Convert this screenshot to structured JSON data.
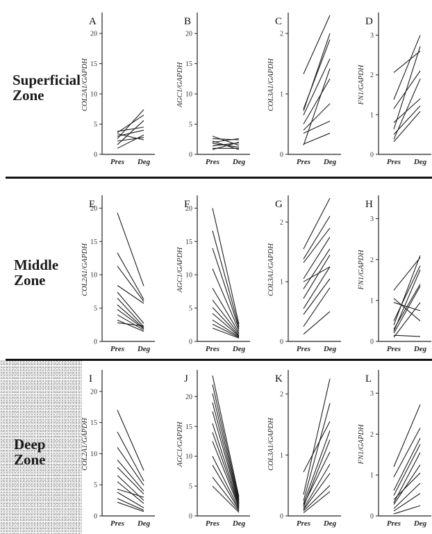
{
  "zones": [
    {
      "id": "superficial",
      "lines": [
        "Superficial",
        "Zone"
      ]
    },
    {
      "id": "middle",
      "lines": [
        "Middle",
        "Zone"
      ]
    },
    {
      "id": "deep",
      "lines": [
        "Deep",
        "Zone"
      ]
    }
  ],
  "chart_data": [
    {
      "type": "line",
      "panel": "A",
      "ylabel": "COL2A1/GAPDH",
      "categories": [
        "Pres",
        "Deg"
      ],
      "ylim": [
        0,
        23
      ],
      "yticks": [
        0,
        5,
        10,
        15,
        20
      ],
      "series": [
        {
          "values": [
            3.8,
            4.5
          ]
        },
        {
          "values": [
            3.6,
            6.5
          ]
        },
        {
          "values": [
            3.4,
            2.4
          ]
        },
        {
          "values": [
            3.0,
            4.0
          ]
        },
        {
          "values": [
            2.6,
            7.4
          ]
        },
        {
          "values": [
            2.2,
            2.8
          ]
        },
        {
          "values": [
            1.6,
            5.6
          ]
        },
        {
          "values": [
            1.0,
            3.2
          ]
        }
      ]
    },
    {
      "type": "line",
      "panel": "B",
      "ylabel": "AGC1/GAPDH",
      "categories": [
        "Pres",
        "Deg"
      ],
      "ylim": [
        0,
        23
      ],
      "yticks": [
        0,
        5,
        10,
        15,
        20
      ],
      "series": [
        {
          "values": [
            3.0,
            1.5
          ]
        },
        {
          "values": [
            2.6,
            2.4
          ]
        },
        {
          "values": [
            2.2,
            0.8
          ]
        },
        {
          "values": [
            2.0,
            2.6
          ]
        },
        {
          "values": [
            1.8,
            1.2
          ]
        },
        {
          "values": [
            1.4,
            1.9
          ]
        },
        {
          "values": [
            1.0,
            1.0
          ]
        },
        {
          "values": [
            0.8,
            2.0
          ]
        }
      ]
    },
    {
      "type": "line",
      "panel": "C",
      "ylabel": "COL3A1/GAPDH",
      "categories": [
        "Pres",
        "Deg"
      ],
      "ylim": [
        0,
        2.3
      ],
      "yticks": [
        0,
        1,
        2
      ],
      "series": [
        {
          "values": [
            1.33,
            2.3
          ]
        },
        {
          "values": [
            0.72,
            2.0
          ]
        },
        {
          "values": [
            0.75,
            1.9
          ]
        },
        {
          "values": [
            0.65,
            1.58
          ]
        },
        {
          "values": [
            0.5,
            1.25
          ]
        },
        {
          "values": [
            0.4,
            0.84
          ]
        },
        {
          "values": [
            0.35,
            0.55
          ]
        },
        {
          "values": [
            0.17,
            0.35
          ]
        },
        {
          "values": [
            0.15,
            1.42
          ]
        }
      ]
    },
    {
      "type": "line",
      "panel": "D",
      "ylabel": "FN1/GAPDH",
      "categories": [
        "Pres",
        "Deg"
      ],
      "ylim": [
        0,
        3.5
      ],
      "yticks": [
        0,
        1,
        2,
        3
      ],
      "series": [
        {
          "values": [
            2.06,
            2.6
          ]
        },
        {
          "values": [
            1.38,
            3.0
          ]
        },
        {
          "values": [
            1.15,
            2.1
          ]
        },
        {
          "values": [
            0.8,
            1.4
          ]
        },
        {
          "values": [
            0.63,
            2.72
          ]
        },
        {
          "values": [
            0.5,
            1.22
          ]
        },
        {
          "values": [
            0.38,
            1.9
          ]
        },
        {
          "values": [
            0.32,
            1.08
          ]
        }
      ]
    },
    {
      "type": "line",
      "panel": "E",
      "ylabel": "COL2A1/GAPDH",
      "categories": [
        "Pres",
        "Deg"
      ],
      "ylim": [
        0,
        21.5
      ],
      "yticks": [
        0,
        5,
        10,
        15,
        20
      ],
      "series": [
        {
          "values": [
            19.3,
            8.3
          ]
        },
        {
          "values": [
            13.3,
            6.3
          ]
        },
        {
          "values": [
            11.3,
            6.0
          ]
        },
        {
          "values": [
            8.4,
            5.7
          ]
        },
        {
          "values": [
            7.4,
            2.7
          ]
        },
        {
          "values": [
            6.5,
            2.2
          ]
        },
        {
          "values": [
            5.5,
            2.0
          ]
        },
        {
          "values": [
            4.8,
            1.9
          ]
        },
        {
          "values": [
            4.0,
            1.7
          ]
        },
        {
          "values": [
            3.2,
            1.5
          ]
        },
        {
          "values": [
            2.8,
            2.3
          ]
        }
      ]
    },
    {
      "type": "line",
      "panel": "F",
      "ylabel": "AGC1/GAPDH",
      "categories": [
        "Pres",
        "Deg"
      ],
      "ylim": [
        0,
        21.5
      ],
      "yticks": [
        0,
        5,
        10,
        15,
        20
      ],
      "series": [
        {
          "values": [
            20.0,
            2.6
          ]
        },
        {
          "values": [
            16.6,
            2.2
          ]
        },
        {
          "values": [
            14.0,
            1.9
          ]
        },
        {
          "values": [
            10.9,
            1.6
          ]
        },
        {
          "values": [
            8.0,
            1.3
          ]
        },
        {
          "values": [
            6.2,
            1.1
          ]
        },
        {
          "values": [
            5.1,
            0.9
          ]
        },
        {
          "values": [
            4.2,
            0.8
          ]
        },
        {
          "values": [
            3.2,
            0.7
          ]
        },
        {
          "values": [
            2.6,
            0.6
          ]
        },
        {
          "values": [
            2.0,
            0.5
          ]
        }
      ]
    },
    {
      "type": "line",
      "panel": "G",
      "ylabel": "COL3A1/GAPDH",
      "categories": [
        "Pres",
        "Deg"
      ],
      "ylim": [
        0,
        2.4
      ],
      "yticks": [
        0,
        1,
        2
      ],
      "series": [
        {
          "values": [
            1.55,
            2.4
          ]
        },
        {
          "values": [
            1.38,
            2.1
          ]
        },
        {
          "values": [
            1.32,
            1.9
          ]
        },
        {
          "values": [
            1.05,
            1.75
          ]
        },
        {
          "values": [
            1.0,
            1.25
          ]
        },
        {
          "values": [
            0.88,
            1.55
          ]
        },
        {
          "values": [
            0.72,
            1.45
          ]
        },
        {
          "values": [
            0.55,
            1.25
          ]
        },
        {
          "values": [
            0.45,
            1.05
          ]
        },
        {
          "values": [
            0.25,
            0.9
          ]
        },
        {
          "values": [
            0.12,
            0.5
          ]
        }
      ]
    },
    {
      "type": "line",
      "panel": "H",
      "ylabel": "FN1/GAPDH",
      "categories": [
        "Pres",
        "Deg"
      ],
      "ylim": [
        0,
        3.5
      ],
      "yticks": [
        0,
        1,
        2,
        3
      ],
      "series": [
        {
          "values": [
            1.25,
            2.05
          ]
        },
        {
          "values": [
            1.05,
            0.5
          ]
        },
        {
          "values": [
            0.95,
            0.75
          ]
        },
        {
          "values": [
            0.5,
            1.85
          ]
        },
        {
          "values": [
            0.4,
            2.1
          ]
        },
        {
          "values": [
            0.3,
            1.4
          ]
        },
        {
          "values": [
            0.25,
            1.75
          ]
        },
        {
          "values": [
            0.2,
            1.35
          ]
        },
        {
          "values": [
            0.15,
            0.12
          ]
        },
        {
          "values": [
            0.1,
            0.95
          ]
        }
      ]
    },
    {
      "type": "line",
      "panel": "I",
      "ylabel": "COL2A1/GAPDH",
      "categories": [
        "Pres",
        "Deg"
      ],
      "ylim": [
        0,
        23
      ],
      "yticks": [
        0,
        5,
        10,
        15,
        20
      ],
      "series": [
        {
          "values": [
            17.0,
            7.3
          ]
        },
        {
          "values": [
            13.5,
            5.6
          ]
        },
        {
          "values": [
            11.0,
            4.9
          ]
        },
        {
          "values": [
            9.0,
            4.0
          ]
        },
        {
          "values": [
            7.8,
            3.5
          ]
        },
        {
          "values": [
            6.5,
            2.5
          ]
        },
        {
          "values": [
            5.5,
            2.0
          ]
        },
        {
          "values": [
            4.3,
            3.0
          ]
        },
        {
          "values": [
            3.8,
            1.3
          ]
        },
        {
          "values": [
            2.8,
            0.9
          ]
        },
        {
          "values": [
            2.2,
            0.7
          ]
        }
      ]
    },
    {
      "type": "line",
      "panel": "J",
      "ylabel": "AGC1/GAPDH",
      "categories": [
        "Pres",
        "Deg"
      ],
      "ylim": [
        0,
        24
      ],
      "yticks": [
        0,
        5,
        10,
        15,
        20
      ],
      "series": [
        {
          "values": [
            23.5,
            3.2
          ]
        },
        {
          "values": [
            22.0,
            2.8
          ]
        },
        {
          "values": [
            20.5,
            2.5
          ]
        },
        {
          "values": [
            19.0,
            2.2
          ]
        },
        {
          "values": [
            17.5,
            2.0
          ]
        },
        {
          "values": [
            15.5,
            1.8
          ]
        },
        {
          "values": [
            14.0,
            1.6
          ]
        },
        {
          "values": [
            12.5,
            1.4
          ]
        },
        {
          "values": [
            10.0,
            1.2
          ]
        },
        {
          "values": [
            8.5,
            1.0
          ]
        },
        {
          "values": [
            6.5,
            0.8
          ]
        },
        {
          "values": [
            5.0,
            0.6
          ]
        }
      ]
    },
    {
      "type": "line",
      "panel": "K",
      "ylabel": "COL3A1/GAPDH",
      "categories": [
        "Pres",
        "Deg"
      ],
      "ylim": [
        0,
        2.35
      ],
      "yticks": [
        0,
        1,
        2
      ],
      "series": [
        {
          "values": [
            0.72,
            1.55
          ]
        },
        {
          "values": [
            0.35,
            2.25
          ]
        },
        {
          "values": [
            0.25,
            1.85
          ]
        },
        {
          "values": [
            0.2,
            1.4
          ]
        },
        {
          "values": [
            0.18,
            1.05
          ]
        },
        {
          "values": [
            0.15,
            1.25
          ]
        },
        {
          "values": [
            0.12,
            0.85
          ]
        },
        {
          "values": [
            0.1,
            0.7
          ]
        },
        {
          "values": [
            0.08,
            0.5
          ]
        },
        {
          "values": [
            0.05,
            0.4
          ]
        }
      ]
    },
    {
      "type": "line",
      "panel": "L",
      "ylabel": "FN1/GAPDH",
      "categories": [
        "Pres",
        "Deg"
      ],
      "ylim": [
        0,
        3.5
      ],
      "yticks": [
        0,
        1,
        2,
        3
      ],
      "series": [
        {
          "values": [
            1.2,
            2.72
          ]
        },
        {
          "values": [
            0.95,
            2.15
          ]
        },
        {
          "values": [
            0.62,
            1.9
          ]
        },
        {
          "values": [
            0.5,
            1.75
          ]
        },
        {
          "values": [
            0.4,
            1.05
          ]
        },
        {
          "values": [
            0.32,
            1.55
          ]
        },
        {
          "values": [
            0.28,
            1.25
          ]
        },
        {
          "values": [
            0.18,
            0.8
          ]
        },
        {
          "values": [
            0.12,
            0.55
          ]
        },
        {
          "values": [
            0.05,
            0.25
          ]
        }
      ]
    }
  ]
}
